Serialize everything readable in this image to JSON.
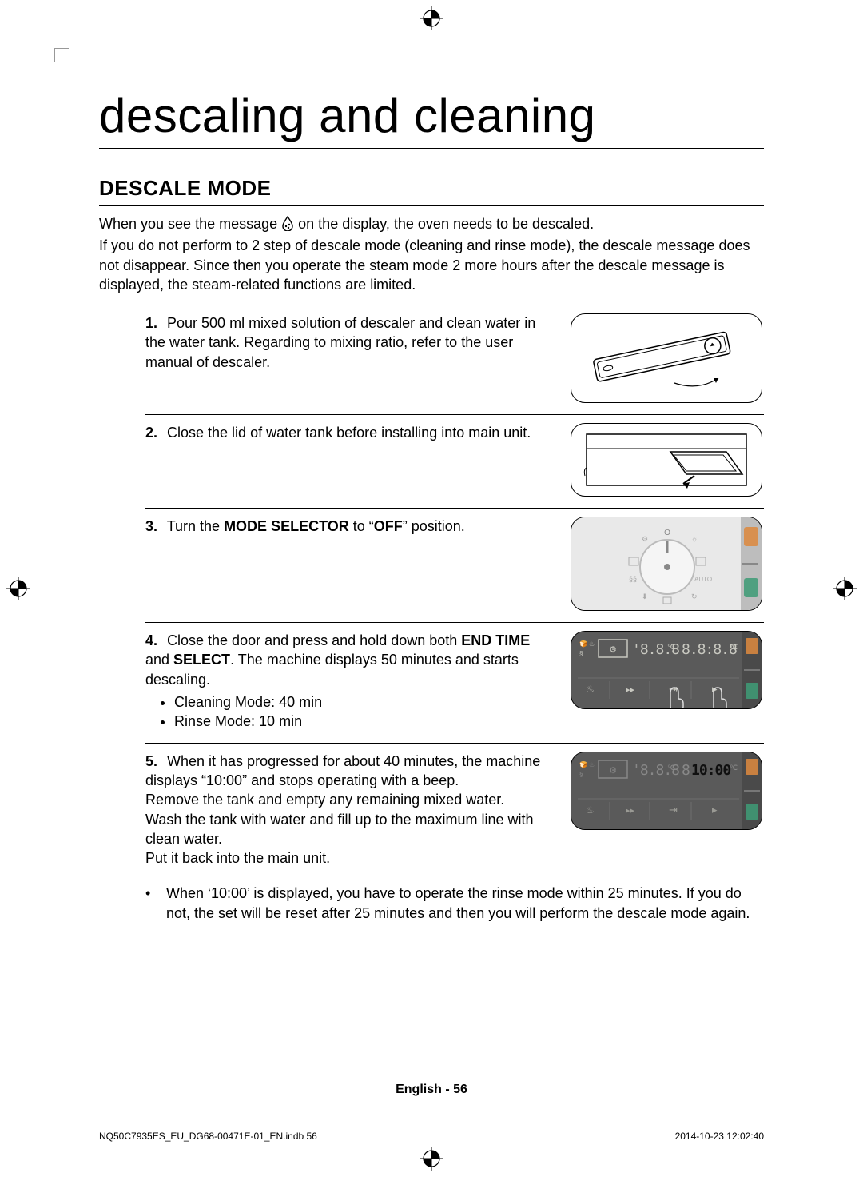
{
  "title": "descaling and cleaning",
  "section": "DESCALE MODE",
  "intro": "When you see the message ​ on the display, the oven needs to be descaled.\nIf you do not perform to 2 step of descale mode (cleaning and rinse mode), the descale message does not disappear. Since then you operate the steam mode 2 more hours after the descale message is displayed, the steam-related functions are limited.",
  "intro_lines": [
    "When you see the message ",
    " on the display, the oven needs to be descaled.",
    "If you do not perform to 2 step of descale mode (cleaning and rinse mode), the descale message does not disappear. Since then you operate the steam mode 2 more hours after the descale message is displayed, the steam-related functions are limited."
  ],
  "steps": [
    {
      "num": "1.",
      "text": "Pour 500 ml mixed solution of descaler and clean water in the water tank. Regarding to mixing ratio, refer to the user manual of descaler.",
      "fig_h": 112
    },
    {
      "num": "2.",
      "text": "Close the lid of water tank before installing into main unit.",
      "fig_h": 92
    },
    {
      "num": "3.",
      "html": "Turn the <b>MODE SELECTOR</b> to “<b>OFF</b>” position.",
      "fig_h": 118
    },
    {
      "num": "4.",
      "html": "Close the door and press and hold down both <b>END TIME</b> and <b>SELECT</b>. The machine displays 50 minutes and starts descaling.",
      "bullets": [
        "Cleaning Mode: 40 min",
        "Rinse Mode: 10 min"
      ],
      "fig_h": 98,
      "panel": true
    },
    {
      "num": "5.",
      "text": "When it has progressed for about 40 minutes, the machine displays “10:00” and stops operating with a beep.\nRemove the tank and empty any remaining mixed water.\nWash the tank with water and fill up to the maximum line with clean water.\nPut it back into the main unit.",
      "fig_h": 98,
      "panel": true,
      "noborder": true
    }
  ],
  "note": "When ‘10:00’ is displayed, you have to operate the rinse mode within 25 minutes. If you do not, the set will be reset after 25 minutes and then you will perform the descale mode again.",
  "footer_lang": "English - 56",
  "print_file": "NQ50C7935ES_EU_DG68-00471E-01_EN.indb   56",
  "print_ts": "2014-10-23    12:02:40",
  "colors": {
    "panel_bg": "#5a5a5a",
    "lcd_text": "#c8c8c0",
    "lcd_highlight": "#1a1a1a"
  }
}
